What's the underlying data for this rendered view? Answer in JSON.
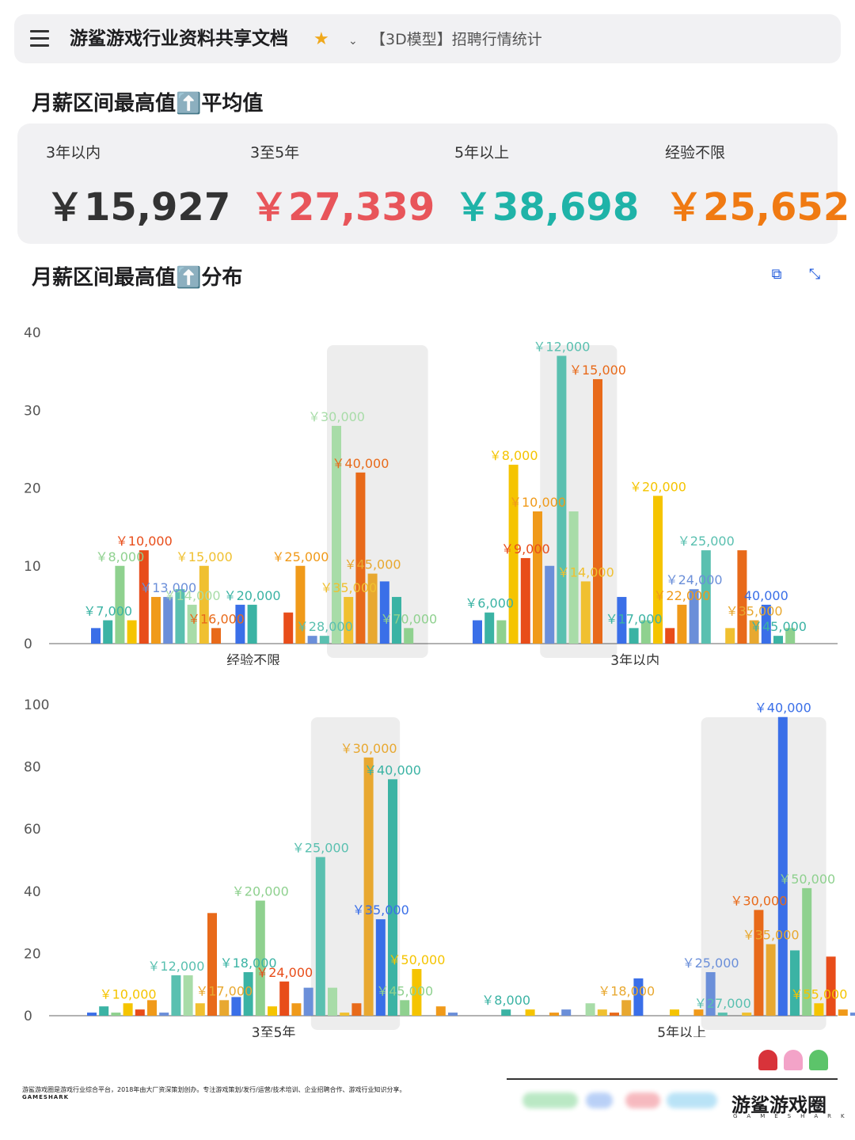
{
  "header": {
    "title": "游鲨游戏行业资料共享文档",
    "doc_tab": "【3D模型】招聘行情统计"
  },
  "stats": {
    "title": "月薪区间最高值⬆️平均值",
    "items": [
      {
        "label": "3年以内",
        "value": "￥15,927",
        "color": "#333333"
      },
      {
        "label": "3至5年",
        "value": "￥27,339",
        "color": "#e8555a"
      },
      {
        "label": "5年以上",
        "value": "￥38,698",
        "color": "#1fb3a8"
      },
      {
        "label": "经验不限",
        "value": "￥25,652",
        "color": "#f07a12"
      }
    ]
  },
  "dist_title": "月薪区间最高值⬆️分布",
  "chart_data": [
    {
      "type": "bar",
      "ylim": [
        0,
        40
      ],
      "yticks": [
        0,
        10,
        20,
        30,
        40
      ],
      "groups": [
        {
          "label": "经验不限",
          "highlight": [
            20,
            27
          ],
          "bars": [
            {
              "value": 2,
              "label": ""
            },
            {
              "value": 3,
              "label": "￥7,000"
            },
            {
              "value": 10,
              "label": "￥8,000"
            },
            {
              "value": 3,
              "label": ""
            },
            {
              "value": 12,
              "label": "￥10,000"
            },
            {
              "value": 6,
              "label": ""
            },
            {
              "value": 6,
              "label": "￥13,000"
            },
            {
              "value": 7,
              "label": ""
            },
            {
              "value": 5,
              "label": "￥14,000"
            },
            {
              "value": 10,
              "label": "￥15,000"
            },
            {
              "value": 2,
              "label": "￥16,000"
            },
            {
              "value": 0,
              "label": ""
            },
            {
              "value": 5,
              "label": ""
            },
            {
              "value": 5,
              "label": "￥20,000"
            },
            {
              "value": 0,
              "label": ""
            },
            {
              "value": 0,
              "label": ""
            },
            {
              "value": 4,
              "label": ""
            },
            {
              "value": 10,
              "label": "￥25,000"
            },
            {
              "value": 1,
              "label": ""
            },
            {
              "value": 1,
              "label": "￥28,000"
            },
            {
              "value": 28,
              "label": "￥30,000"
            },
            {
              "value": 6,
              "label": "￥35,000"
            },
            {
              "value": 22,
              "label": "￥40,000"
            },
            {
              "value": 9,
              "label": "￥45,000"
            },
            {
              "value": 8,
              "label": ""
            },
            {
              "value": 6,
              "label": ""
            },
            {
              "value": 2,
              "label": "￥70,000"
            }
          ]
        },
        {
          "label": "3年以内",
          "highlight": [
            6,
            11
          ],
          "bars": [
            {
              "value": 3,
              "label": ""
            },
            {
              "value": 4,
              "label": "￥6,000"
            },
            {
              "value": 3,
              "label": ""
            },
            {
              "value": 23,
              "label": "￥8,000"
            },
            {
              "value": 11,
              "label": "￥9,000"
            },
            {
              "value": 17,
              "label": "￥10,000"
            },
            {
              "value": 10,
              "label": ""
            },
            {
              "value": 37,
              "label": "￥12,000"
            },
            {
              "value": 17,
              "label": ""
            },
            {
              "value": 8,
              "label": "￥14,000"
            },
            {
              "value": 34,
              "label": "￥15,000"
            },
            {
              "value": 0,
              "label": ""
            },
            {
              "value": 6,
              "label": ""
            },
            {
              "value": 2,
              "label": "￥17,000"
            },
            {
              "value": 3,
              "label": ""
            },
            {
              "value": 19,
              "label": "￥20,000"
            },
            {
              "value": 2,
              "label": ""
            },
            {
              "value": 5,
              "label": "￥22,000"
            },
            {
              "value": 7,
              "label": "￥24,000"
            },
            {
              "value": 12,
              "label": "￥25,000"
            },
            {
              "value": 0,
              "label": ""
            },
            {
              "value": 2,
              "label": ""
            },
            {
              "value": 12,
              "label": ""
            },
            {
              "value": 3,
              "label": "￥35,000"
            },
            {
              "value": 5,
              "label": "40,000"
            },
            {
              "value": 1,
              "label": "￥45,000"
            },
            {
              "value": 2,
              "label": ""
            }
          ]
        }
      ]
    },
    {
      "type": "bar",
      "ylim": [
        0,
        100
      ],
      "yticks": [
        0,
        20,
        40,
        60,
        80,
        100
      ],
      "groups": [
        {
          "label": "3至5年",
          "highlight": [
            19,
            25
          ],
          "bars": [
            {
              "value": 1,
              "label": ""
            },
            {
              "value": 3,
              "label": ""
            },
            {
              "value": 1,
              "label": ""
            },
            {
              "value": 4,
              "label": "￥10,000"
            },
            {
              "value": 2,
              "label": ""
            },
            {
              "value": 5,
              "label": ""
            },
            {
              "value": 1,
              "label": ""
            },
            {
              "value": 13,
              "label": "￥12,000"
            },
            {
              "value": 13,
              "label": ""
            },
            {
              "value": 4,
              "label": ""
            },
            {
              "value": 33,
              "label": ""
            },
            {
              "value": 5,
              "label": "￥17,000"
            },
            {
              "value": 6,
              "label": ""
            },
            {
              "value": 14,
              "label": "￥18,000"
            },
            {
              "value": 37,
              "label": "￥20,000"
            },
            {
              "value": 3,
              "label": ""
            },
            {
              "value": 11,
              "label": "￥24,000"
            },
            {
              "value": 4,
              "label": ""
            },
            {
              "value": 9,
              "label": ""
            },
            {
              "value": 51,
              "label": "￥25,000"
            },
            {
              "value": 9,
              "label": ""
            },
            {
              "value": 1,
              "label": ""
            },
            {
              "value": 4,
              "label": ""
            },
            {
              "value": 83,
              "label": "￥30,000"
            },
            {
              "value": 31,
              "label": "￥35,000"
            },
            {
              "value": 76,
              "label": "￥40,000"
            },
            {
              "value": 5,
              "label": "￥45,000"
            },
            {
              "value": 15,
              "label": "￥50,000"
            },
            {
              "value": 0,
              "label": ""
            },
            {
              "value": 3,
              "label": ""
            },
            {
              "value": 1,
              "label": ""
            }
          ]
        },
        {
          "label": "5年以上",
          "highlight": [
            18,
            27
          ],
          "bars": [
            {
              "value": 0,
              "label": ""
            },
            {
              "value": 2,
              "label": "￥8,000"
            },
            {
              "value": 0,
              "label": ""
            },
            {
              "value": 2,
              "label": ""
            },
            {
              "value": 0,
              "label": ""
            },
            {
              "value": 1,
              "label": ""
            },
            {
              "value": 2,
              "label": ""
            },
            {
              "value": 0,
              "label": ""
            },
            {
              "value": 4,
              "label": ""
            },
            {
              "value": 2,
              "label": ""
            },
            {
              "value": 1,
              "label": ""
            },
            {
              "value": 5,
              "label": "￥18,000"
            },
            {
              "value": 12,
              "label": ""
            },
            {
              "value": 0,
              "label": ""
            },
            {
              "value": 0,
              "label": ""
            },
            {
              "value": 2,
              "label": ""
            },
            {
              "value": 0,
              "label": ""
            },
            {
              "value": 2,
              "label": ""
            },
            {
              "value": 14,
              "label": "￥25,000"
            },
            {
              "value": 1,
              "label": "￥27,000"
            },
            {
              "value": 0,
              "label": ""
            },
            {
              "value": 1,
              "label": ""
            },
            {
              "value": 34,
              "label": "￥30,000"
            },
            {
              "value": 23,
              "label": "￥35,000"
            },
            {
              "value": 96,
              "label": "￥40,000"
            },
            {
              "value": 21,
              "label": ""
            },
            {
              "value": 41,
              "label": "￥50,000"
            },
            {
              "value": 4,
              "label": "￥55,000"
            },
            {
              "value": 19,
              "label": ""
            },
            {
              "value": 2,
              "label": ""
            },
            {
              "value": 1,
              "label": ""
            },
            {
              "value": 1,
              "label": ""
            }
          ]
        }
      ]
    }
  ],
  "palette": [
    "#3a6fe8",
    "#3bb3a4",
    "#8fd18f",
    "#f5c400",
    "#e84d1a",
    "#f09a1a",
    "#6b8fd9",
    "#5ac0b0",
    "#a8dca8",
    "#f0c030",
    "#e86a1a",
    "#e8a830"
  ],
  "footer": {
    "text": "游鲨游戏圈是游戏行业综合平台，2018年由大厂资深策划创办。专注游戏策划/发行/运营/技术培训、企业招聘合作、游戏行业知识分享。",
    "en": "GAMESHARK",
    "logo": "游鲨游戏圈",
    "logo_en": "GAMESHARK"
  }
}
